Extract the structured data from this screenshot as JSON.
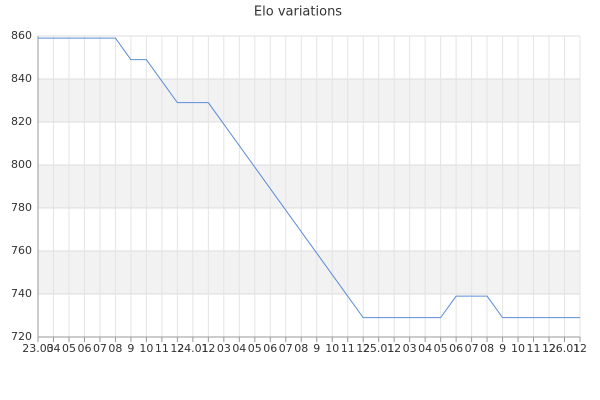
{
  "chart_data": {
    "type": "line",
    "title": "Elo variations",
    "categories": [
      "23.03",
      "04",
      "05",
      "06",
      "07",
      "08",
      "9",
      "10",
      "11",
      "12",
      "24.01",
      "12",
      "03",
      "04",
      "05",
      "06",
      "07",
      "08",
      "9",
      "10",
      "11",
      "12",
      "25.01",
      "12",
      "03",
      "04",
      "05",
      "06",
      "07",
      "08",
      "9",
      "10",
      "11",
      "12",
      "26.01",
      "12"
    ],
    "series": [
      {
        "color": "#5b8ed6",
        "values": [
          859,
          859,
          859,
          859,
          859,
          859,
          849,
          849,
          839,
          829,
          829,
          829,
          819,
          809,
          799,
          789,
          779,
          769,
          759,
          749,
          739,
          729,
          729,
          729,
          729,
          729,
          729,
          739,
          739,
          739,
          729,
          729,
          729,
          729,
          729,
          729
        ]
      }
    ],
    "ylim": [
      720,
      860
    ],
    "yticks": [
      720,
      740,
      760,
      780,
      800,
      820,
      840,
      860
    ],
    "grid": true
  }
}
